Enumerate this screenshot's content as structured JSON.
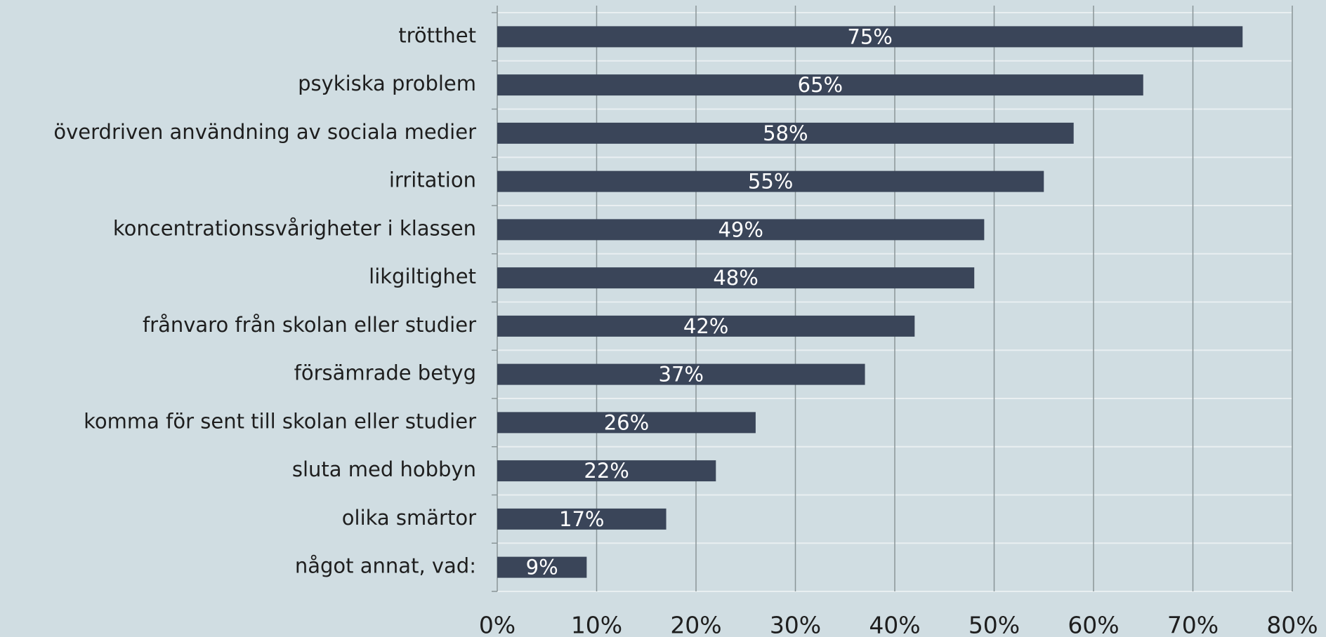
{
  "chart_data": {
    "type": "bar",
    "orientation": "horizontal",
    "categories": [
      "trötthet",
      "psykiska problem",
      "överdriven användning av sociala medier",
      "irritation",
      "koncentrationssvårigheter i klassen",
      "likgiltighet",
      "frånvaro från skolan eller studier",
      "försämrade betyg",
      "komma för sent till skolan eller studier",
      "sluta med hobbyn",
      "olika smärtor",
      "något annat, vad:"
    ],
    "values": [
      75,
      65,
      58,
      55,
      49,
      48,
      42,
      37,
      26,
      22,
      17,
      9
    ],
    "value_labels": [
      "75%",
      "65%",
      "58%",
      "55%",
      "49%",
      "48%",
      "42%",
      "37%",
      "26%",
      "22%",
      "17%",
      "9%"
    ],
    "color": "#3a4559",
    "xlim": [
      0,
      80
    ],
    "xticks": [
      {
        "value": 0,
        "label": "0%"
      },
      {
        "value": 10,
        "label": "10%"
      },
      {
        "value": 20,
        "label": "20%"
      },
      {
        "value": 30,
        "label": "30%"
      },
      {
        "value": 40,
        "label": "40%"
      },
      {
        "value": 50,
        "label": "50%"
      },
      {
        "value": 60,
        "label": "60%"
      },
      {
        "value": 70,
        "label": "70%"
      },
      {
        "value": 80,
        "label": "80%"
      }
    ],
    "grid": true
  }
}
